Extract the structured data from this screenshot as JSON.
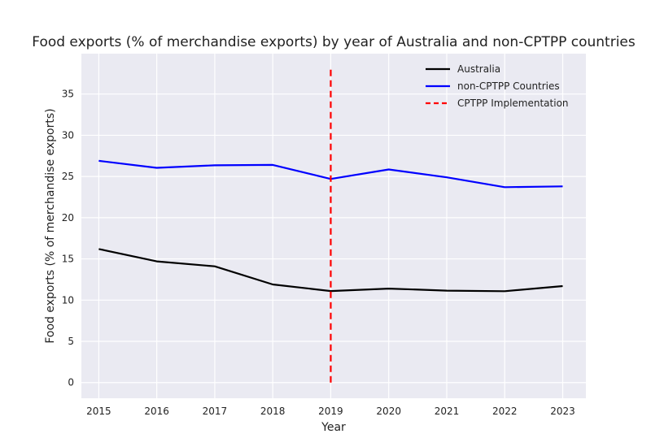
{
  "chart_data": {
    "type": "line",
    "title": "Food exports (% of merchandise exports) by year of Australia and non-CPTPP countries",
    "xlabel": "Year",
    "ylabel": "Food exports (% of merchandise exports)",
    "x": [
      2015,
      2016,
      2017,
      2018,
      2019,
      2020,
      2021,
      2022,
      2023
    ],
    "x_ticks": [
      "2015",
      "2016",
      "2017",
      "2018",
      "2019",
      "2020",
      "2021",
      "2022",
      "2023"
    ],
    "y_ticks": [
      "0",
      "5",
      "10",
      "15",
      "20",
      "25",
      "30",
      "35"
    ],
    "xlim": [
      2014.7,
      2023.4
    ],
    "ylim": [
      -1.9,
      39.9
    ],
    "grid": true,
    "background": "#eaeaf2",
    "legend_position": "top-right",
    "series": [
      {
        "name": "Australia",
        "color": "#000000",
        "style": "solid",
        "values": [
          16.2,
          14.7,
          14.1,
          11.9,
          11.1,
          11.4,
          11.15,
          11.08,
          11.7
        ]
      },
      {
        "name": "non-CPTPP Countries",
        "color": "#0000ff",
        "style": "solid",
        "values": [
          26.9,
          26.05,
          26.35,
          26.4,
          24.7,
          25.85,
          24.9,
          23.7,
          23.8
        ]
      }
    ],
    "reference_line": {
      "name": "CPTPP Implementation",
      "x": 2019,
      "color": "#ff0000",
      "style": "dashed",
      "y_range": [
        0,
        38
      ]
    }
  }
}
